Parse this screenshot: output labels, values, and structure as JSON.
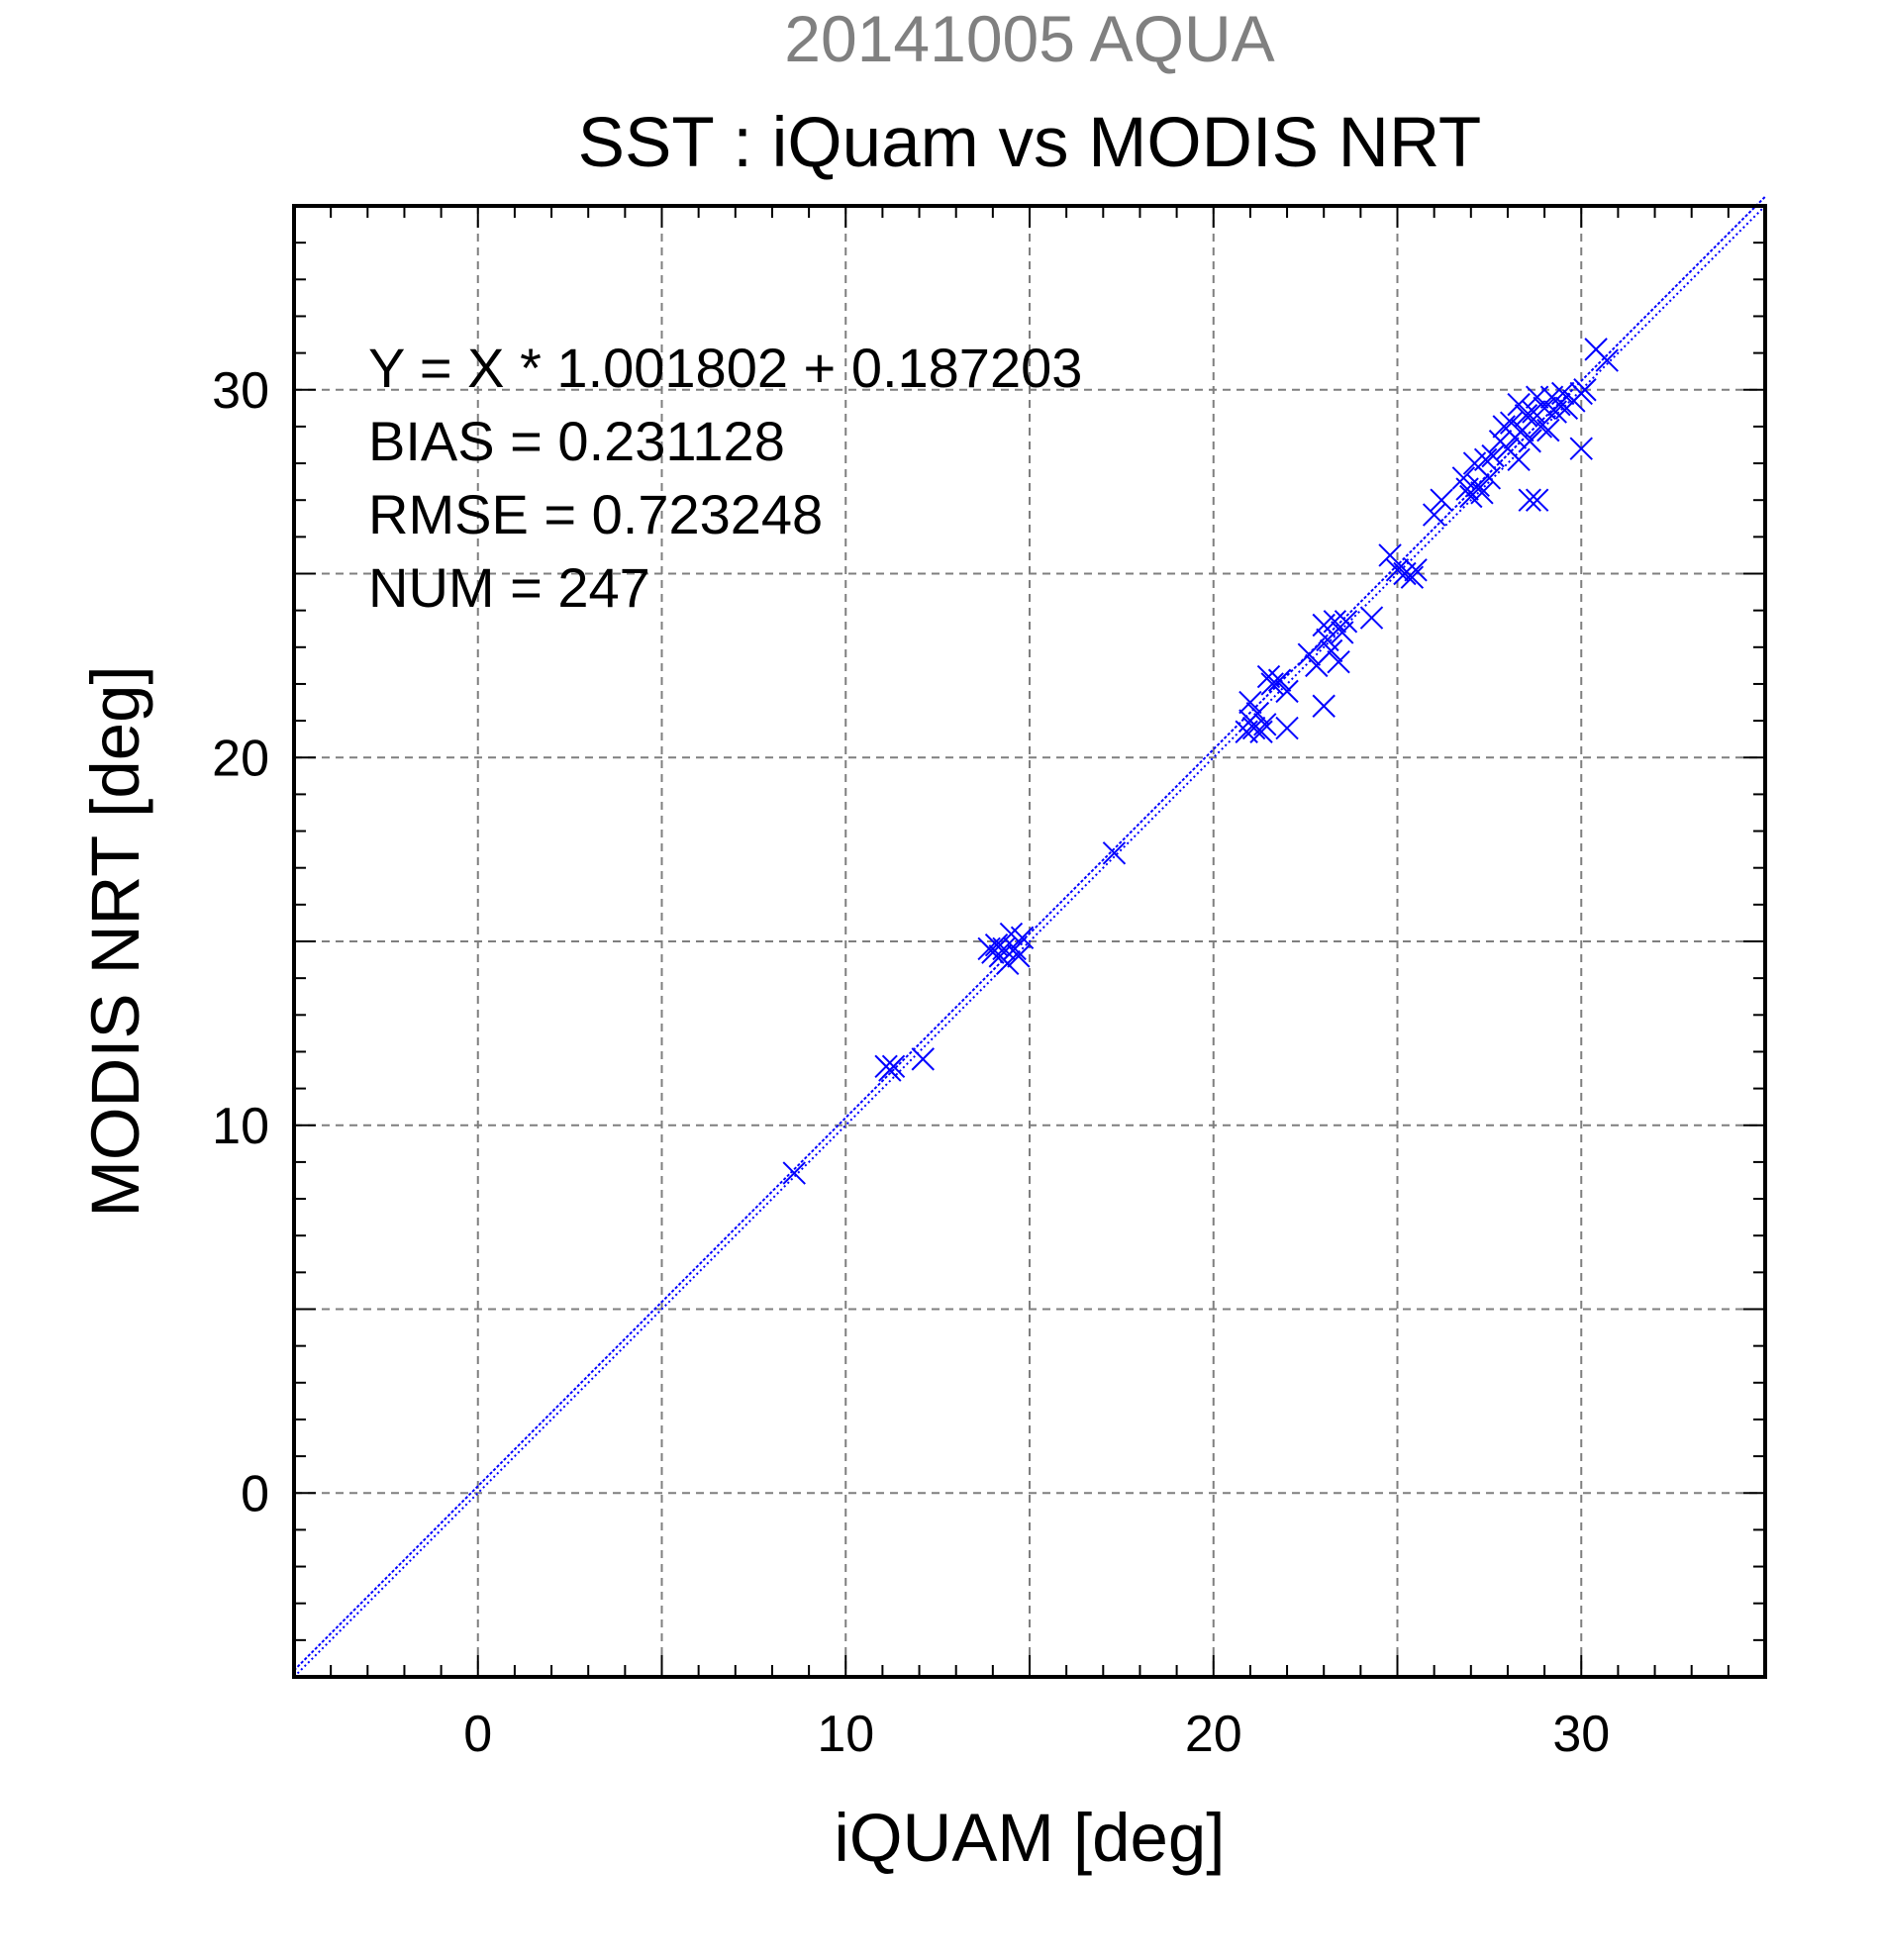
{
  "chart_data": {
    "type": "scatter",
    "date_title": "20141005 AQUA",
    "title": "SST : iQuam vs MODIS NRT",
    "xlabel": "iQUAM [deg]",
    "ylabel": "MODIS NRT [deg]",
    "xlim": [
      -5,
      35
    ],
    "ylim": [
      -5,
      35
    ],
    "x_ticks": [
      0,
      10,
      20,
      30
    ],
    "y_ticks": [
      0,
      10,
      20,
      30
    ],
    "x_tick_labels": [
      "0",
      "10",
      "20",
      "30"
    ],
    "y_tick_labels": [
      "0",
      "10",
      "20",
      "30"
    ],
    "grid": true,
    "marker": "x",
    "color": "#0000ff",
    "stats": {
      "equation": "Y = X * 1.001802 + 0.187203",
      "bias": "BIAS = 0.231128",
      "rmse": "RMSE = 0.723248",
      "num": "NUM = 247"
    },
    "lines": [
      {
        "kind": "regression",
        "slope": 1.001802,
        "intercept": 0.187203
      },
      {
        "kind": "one-to-one",
        "slope": 1,
        "intercept": 0
      }
    ],
    "points": [
      [
        8.6,
        8.7
      ],
      [
        11.1,
        11.6
      ],
      [
        11.2,
        11.5
      ],
      [
        11.3,
        11.6
      ],
      [
        12.1,
        11.8
      ],
      [
        13.9,
        14.8
      ],
      [
        14.0,
        14.7
      ],
      [
        14.1,
        14.9
      ],
      [
        14.2,
        14.6
      ],
      [
        14.3,
        14.8
      ],
      [
        14.4,
        14.4
      ],
      [
        14.5,
        15.2
      ],
      [
        14.6,
        14.8
      ],
      [
        14.7,
        14.6
      ],
      [
        14.8,
        15.1
      ],
      [
        17.3,
        17.4
      ],
      [
        20.9,
        20.7
      ],
      [
        21.0,
        21.0
      ],
      [
        21.0,
        21.5
      ],
      [
        21.1,
        20.8
      ],
      [
        21.2,
        21.2
      ],
      [
        21.3,
        20.7
      ],
      [
        21.4,
        20.9
      ],
      [
        21.5,
        22.2
      ],
      [
        21.6,
        22.0
      ],
      [
        21.8,
        22.1
      ],
      [
        22.0,
        21.8
      ],
      [
        22.0,
        20.8
      ],
      [
        22.6,
        22.8
      ],
      [
        22.8,
        22.5
      ],
      [
        23.0,
        21.4
      ],
      [
        23.0,
        23.6
      ],
      [
        23.1,
        23.2
      ],
      [
        23.2,
        22.9
      ],
      [
        23.3,
        23.7
      ],
      [
        23.4,
        22.6
      ],
      [
        23.5,
        23.4
      ],
      [
        23.6,
        23.7
      ],
      [
        24.3,
        23.8
      ],
      [
        24.8,
        25.5
      ],
      [
        25.0,
        25.1
      ],
      [
        25.2,
        25.0
      ],
      [
        25.4,
        24.9
      ],
      [
        25.5,
        25.1
      ],
      [
        26.0,
        26.6
      ],
      [
        26.2,
        27.0
      ],
      [
        26.8,
        27.6
      ],
      [
        26.9,
        27.3
      ],
      [
        27.0,
        27.1
      ],
      [
        27.1,
        28.0
      ],
      [
        27.2,
        27.4
      ],
      [
        27.3,
        27.2
      ],
      [
        27.4,
        28.1
      ],
      [
        27.5,
        27.6
      ],
      [
        27.6,
        28.2
      ],
      [
        27.8,
        28.6
      ],
      [
        27.9,
        29.0
      ],
      [
        28.0,
        28.4
      ],
      [
        28.1,
        29.1
      ],
      [
        28.2,
        28.7
      ],
      [
        28.3,
        29.6
      ],
      [
        28.3,
        28.1
      ],
      [
        28.4,
        28.9
      ],
      [
        28.5,
        29.3
      ],
      [
        28.6,
        28.6
      ],
      [
        28.6,
        27.0
      ],
      [
        28.7,
        29.4
      ],
      [
        28.8,
        27.0
      ],
      [
        28.8,
        29.8
      ],
      [
        28.9,
        29.0
      ],
      [
        29.0,
        29.5
      ],
      [
        29.1,
        28.9
      ],
      [
        29.2,
        29.8
      ],
      [
        29.3,
        29.4
      ],
      [
        29.4,
        29.6
      ],
      [
        29.5,
        29.9
      ],
      [
        29.6,
        29.5
      ],
      [
        29.8,
        29.7
      ],
      [
        30.0,
        29.9
      ],
      [
        30.0,
        28.4
      ],
      [
        30.1,
        30.0
      ],
      [
        30.4,
        31.1
      ],
      [
        30.7,
        30.8
      ]
    ]
  }
}
